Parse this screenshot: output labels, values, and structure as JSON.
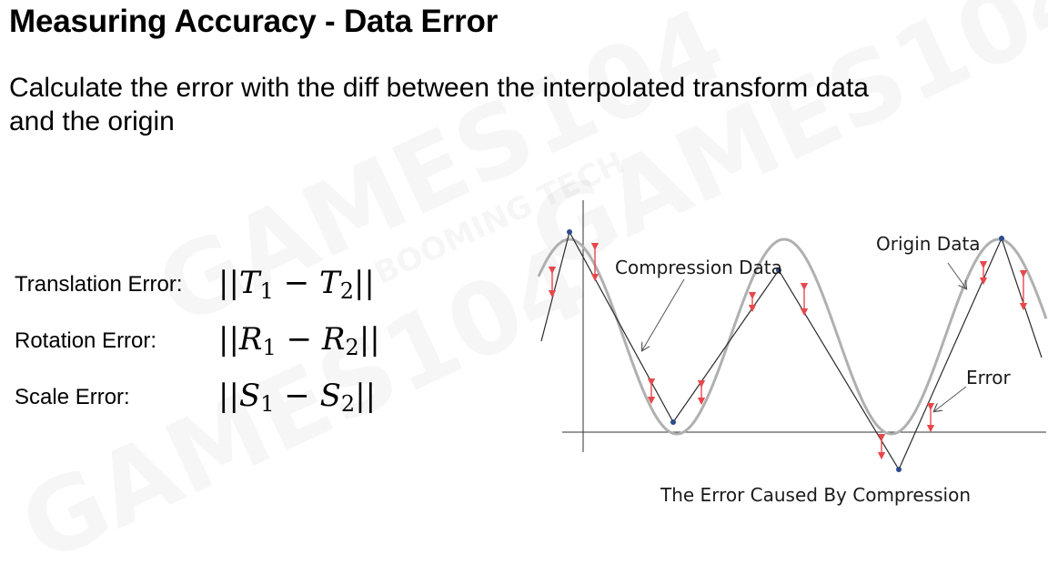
{
  "slide": {
    "title": "Measuring Accuracy - Data Error",
    "subtitle": "Calculate the error with the diff between the interpolated transform data and the origin"
  },
  "formulas": [
    {
      "label": "Translation Error:",
      "symbol": "T",
      "sub1": "1",
      "sub2": "2"
    },
    {
      "label": "Rotation Error:",
      "symbol": "R",
      "sub1": "1",
      "sub2": "2"
    },
    {
      "label": "Scale Error:",
      "symbol": "S",
      "sub1": "1",
      "sub2": "2"
    }
  ],
  "diagram": {
    "labels": {
      "compression": "Compression Data",
      "origin": "Origin Data",
      "error": "Error",
      "caption": "The Error Caused By Compression"
    },
    "colors": {
      "origin_curve": "#b0b0b0",
      "compression_line": "#2a2a2a",
      "error_arrow": "#e8474b",
      "keyframe": "#2b4c8c"
    }
  },
  "watermarks": [
    "GAMES104",
    "BOOMING TECH"
  ]
}
